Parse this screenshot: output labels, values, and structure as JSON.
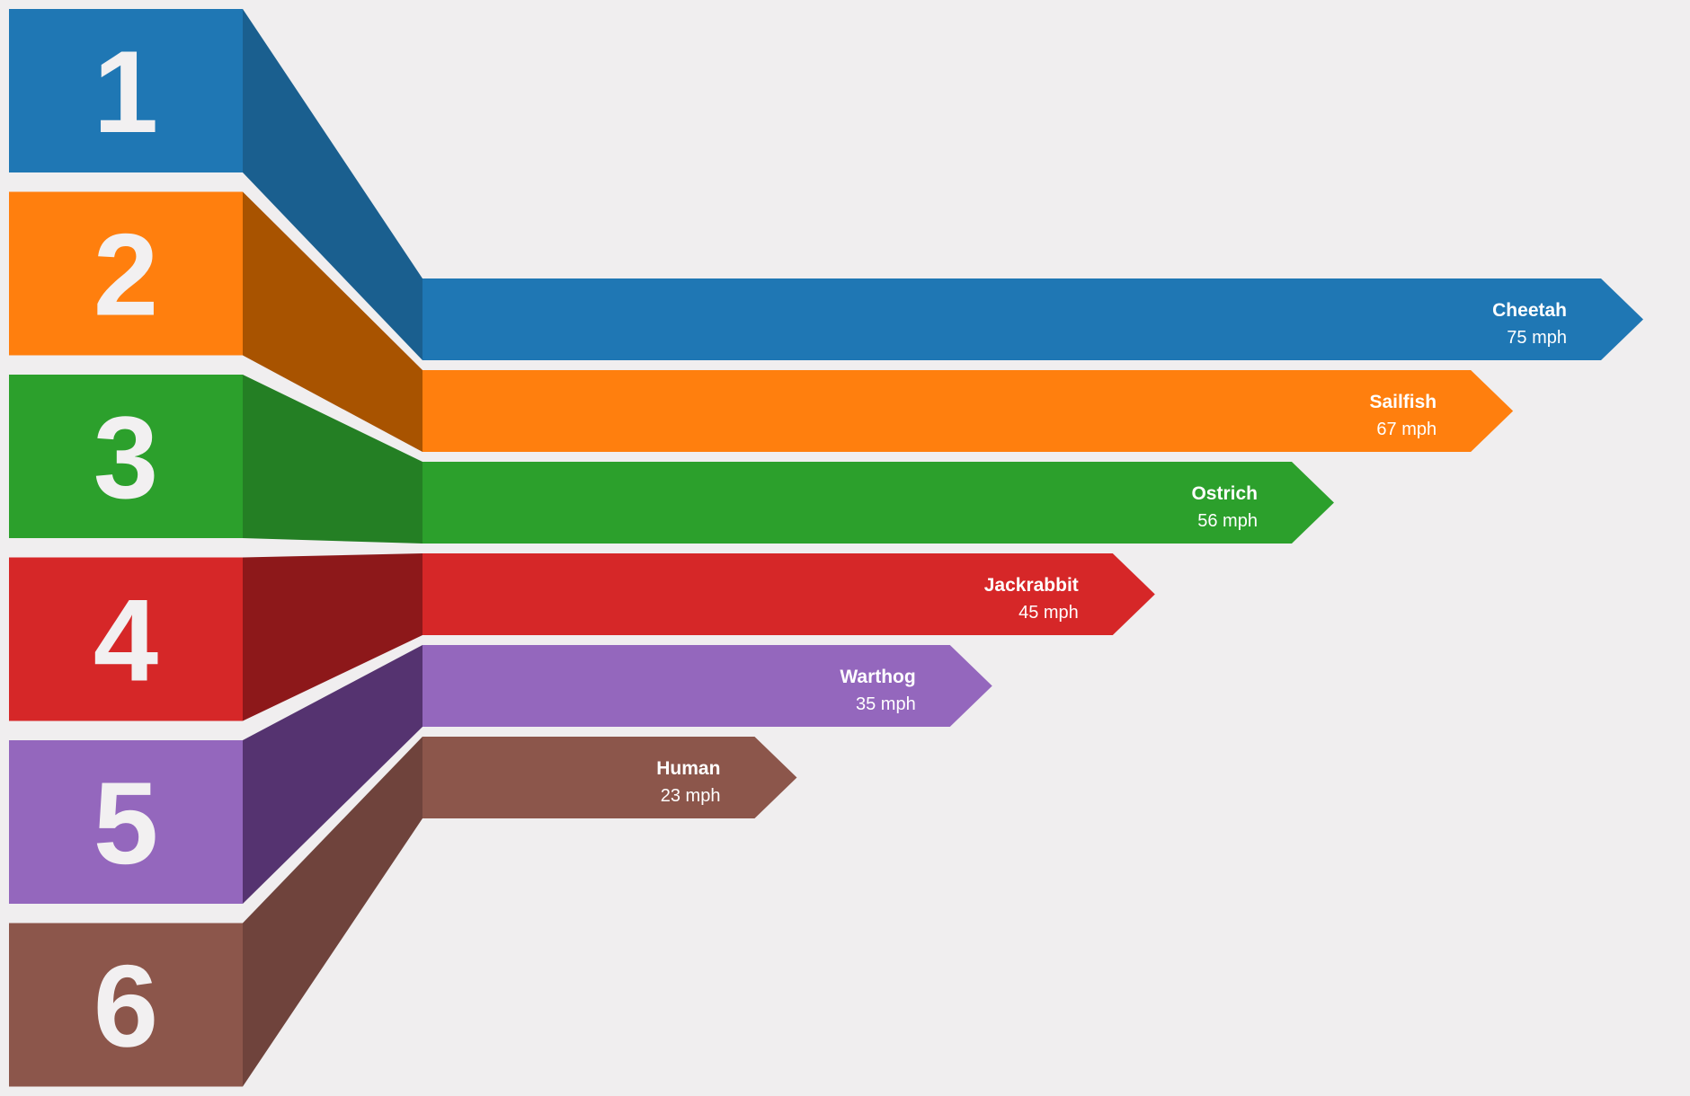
{
  "chart_data": {
    "type": "bar",
    "orientation": "horizontal",
    "title": "",
    "xlabel": "",
    "ylabel": "",
    "unit": "mph",
    "xlim": [
      0,
      75
    ],
    "grid": false,
    "legend": "none",
    "items": [
      {
        "rank": "1",
        "name": "Cheetah",
        "value": 75,
        "value_label": "75 mph",
        "color": "#1f77b4",
        "dark_color": "#1a5f8f"
      },
      {
        "rank": "2",
        "name": "Sailfish",
        "value": 67,
        "value_label": "67 mph",
        "color": "#ff7f0e",
        "dark_color": "#a85300"
      },
      {
        "rank": "3",
        "name": "Ostrich",
        "value": 56,
        "value_label": "56 mph",
        "color": "#2ca02c",
        "dark_color": "#247f24"
      },
      {
        "rank": "4",
        "name": "Jackrabbit",
        "value": 45,
        "value_label": "45 mph",
        "color": "#d62728",
        "dark_color": "#8d181a"
      },
      {
        "rank": "5",
        "name": "Warthog",
        "value": 35,
        "value_label": "35 mph",
        "color": "#9467bd",
        "dark_color": "#553370"
      },
      {
        "rank": "6",
        "name": "Human",
        "value": 23,
        "value_label": "23 mph",
        "color": "#8c564b",
        "dark_color": "#6f433c"
      }
    ]
  }
}
